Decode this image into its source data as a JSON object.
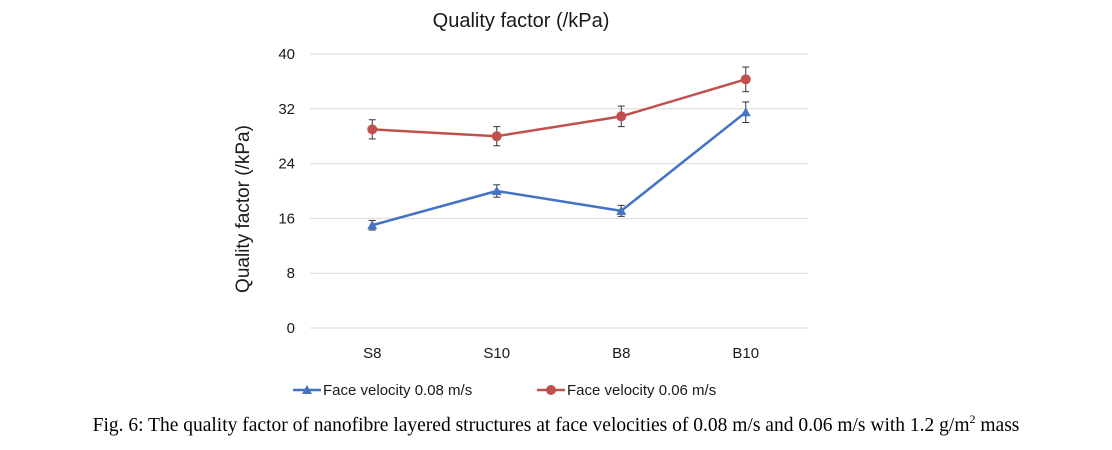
{
  "chart_data": {
    "type": "line",
    "title": "Quality factor (/kPa)",
    "xlabel": "",
    "ylabel": "Quality factor (/kPa)",
    "categories": [
      "S8",
      "S10",
      "B8",
      "B10"
    ],
    "ylim": [
      0,
      40
    ],
    "yticks": [
      0,
      8,
      16,
      24,
      32,
      40
    ],
    "grid": true,
    "legend_position": "bottom",
    "series": [
      {
        "name": "Face velocity 0.08 m/s",
        "color": "#4472c4",
        "marker": "triangle",
        "values": [
          15.0,
          20.0,
          17.1,
          31.5
        ],
        "errors": [
          0.7,
          0.9,
          0.8,
          1.5
        ]
      },
      {
        "name": "Face velocity 0.06 m/s",
        "color": "#c0504d",
        "marker": "circle",
        "values": [
          29.0,
          28.0,
          30.9,
          36.3
        ],
        "errors": [
          1.4,
          1.4,
          1.5,
          1.8
        ]
      }
    ]
  },
  "caption": {
    "main": "Fig. 6: The quality factor of nanofibre layered structures at face velocities of 0.08 m/s and 0.06 m/s with 1.2 g/m",
    "superscript": "2",
    "tail": " mass"
  }
}
